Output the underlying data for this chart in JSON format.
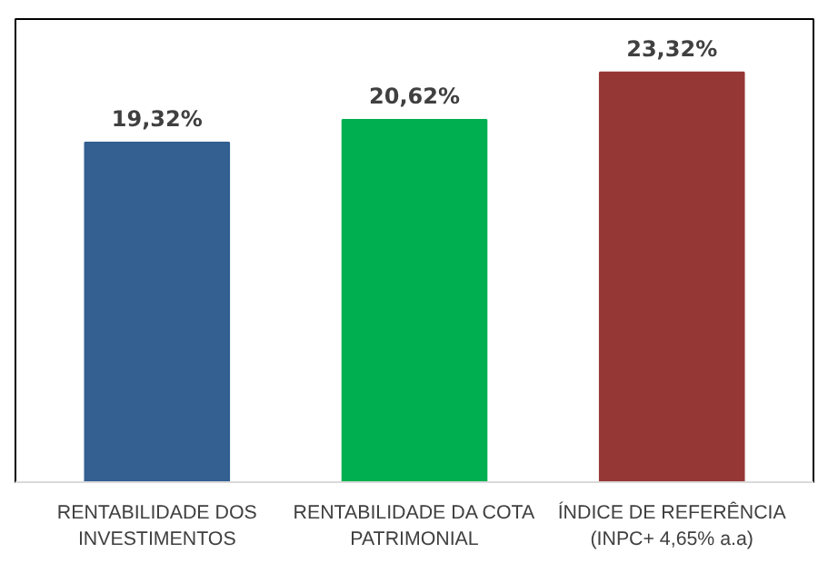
{
  "chart_data": {
    "type": "bar",
    "categories": [
      "RENTABILIDADE DOS\nINVESTIMENTOS",
      "RENTABILIDADE DA COTA\nPATRIMONIAL",
      "ÍNDICE DE REFERÊNCIA\n(INPC+ 4,65% a.a)"
    ],
    "values": [
      19.32,
      20.62,
      23.32
    ],
    "value_labels": [
      "19,32%",
      "20,62%",
      "23,32%"
    ],
    "colors": [
      "#335f91",
      "#00b050",
      "#953735"
    ]
  }
}
